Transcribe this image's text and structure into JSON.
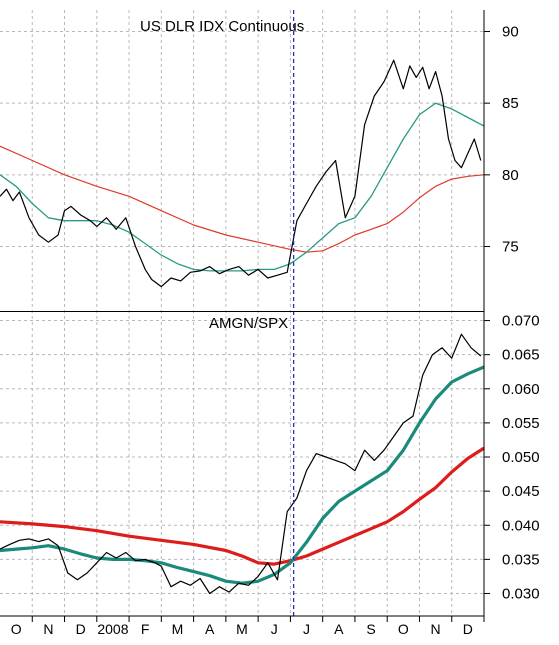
{
  "chart_data": [
    {
      "type": "line",
      "title": "US DLR IDX Continuous",
      "y_ticks": [
        75,
        80,
        85,
        90
      ],
      "ylim": [
        70.5,
        91.5
      ],
      "x_labels": [
        "O",
        "N",
        "D",
        "2008",
        "F",
        "M",
        "A",
        "M",
        "J",
        "J",
        "A",
        "S",
        "O",
        "N",
        "D"
      ],
      "x_domain": [
        0,
        15
      ],
      "grid": true,
      "colors": {
        "price": "#000000",
        "ma_short": "#2a9a86",
        "ma_long": "#e03a2a",
        "cursor": "#2233bb"
      },
      "series": [
        {
          "key": "price",
          "x": [
            0.0,
            0.2,
            0.4,
            0.6,
            0.9,
            1.2,
            1.5,
            1.8,
            2.0,
            2.2,
            2.5,
            2.8,
            3.0,
            3.3,
            3.6,
            3.9,
            4.2,
            4.5,
            4.7,
            5.0,
            5.3,
            5.6,
            5.9,
            6.2,
            6.5,
            6.8,
            7.1,
            7.4,
            7.7,
            8.0,
            8.3,
            8.6,
            8.9,
            9.2,
            9.5,
            9.8,
            10.1,
            10.4,
            10.7,
            11.0,
            11.3,
            11.6,
            11.9,
            12.2,
            12.5,
            12.7,
            12.9,
            13.1,
            13.3,
            13.5,
            13.7,
            13.9,
            14.1,
            14.3,
            14.5,
            14.7,
            14.9
          ],
          "values": [
            78.5,
            79.0,
            78.2,
            78.8,
            77.0,
            75.8,
            75.3,
            75.8,
            77.5,
            77.8,
            77.2,
            76.8,
            76.4,
            77.0,
            76.2,
            77.0,
            75.0,
            73.4,
            72.7,
            72.2,
            72.8,
            72.6,
            73.2,
            73.3,
            73.6,
            73.1,
            73.4,
            73.6,
            73.0,
            73.4,
            72.8,
            73.0,
            73.2,
            76.8,
            78.0,
            79.2,
            80.2,
            81.0,
            77.0,
            78.5,
            83.5,
            85.5,
            86.5,
            88.0,
            86.0,
            87.6,
            86.8,
            87.5,
            86.0,
            87.2,
            85.5,
            82.5,
            81.0,
            80.5,
            81.5,
            82.5,
            81.0
          ]
        },
        {
          "key": "ma_short",
          "x": [
            0,
            0.5,
            1,
            1.5,
            2,
            2.5,
            3,
            3.5,
            4,
            4.5,
            5,
            5.5,
            6,
            6.5,
            7,
            7.5,
            8,
            8.5,
            9,
            9.5,
            10,
            10.5,
            11,
            11.5,
            12,
            12.5,
            13,
            13.5,
            14,
            14.5,
            15
          ],
          "values": [
            80.0,
            79.2,
            78.0,
            77.0,
            76.8,
            76.8,
            76.8,
            76.5,
            76.0,
            75.2,
            74.4,
            73.8,
            73.4,
            73.3,
            73.3,
            73.3,
            73.4,
            73.4,
            73.8,
            74.6,
            75.6,
            76.6,
            77.0,
            78.5,
            80.5,
            82.5,
            84.2,
            85.0,
            84.6,
            84.0,
            83.4
          ]
        },
        {
          "key": "ma_long",
          "x": [
            0,
            1,
            2,
            3,
            4,
            5,
            6,
            7,
            8,
            9,
            9.5,
            10,
            10.5,
            11,
            11.5,
            12,
            12.5,
            13,
            13.5,
            14,
            14.5,
            15
          ],
          "values": [
            82.0,
            81.0,
            80.0,
            79.2,
            78.5,
            77.5,
            76.5,
            75.8,
            75.3,
            74.8,
            74.6,
            74.7,
            75.2,
            75.8,
            76.2,
            76.6,
            77.4,
            78.4,
            79.2,
            79.7,
            79.9,
            80.0
          ]
        }
      ]
    },
    {
      "type": "line",
      "title": "AMGN/SPX",
      "y_ticks": [
        0.03,
        0.035,
        0.04,
        0.045,
        0.05,
        0.055,
        0.06,
        0.065,
        0.07
      ],
      "y_tick_labels": [
        "0.030",
        "0.035",
        "0.040",
        "0.045",
        "0.050",
        "0.055",
        "0.060",
        "0.065",
        "0.070"
      ],
      "ylim": [
        0.0267,
        0.0714
      ],
      "x_domain": [
        0,
        15
      ],
      "grid": true,
      "colors": {
        "price": "#000000",
        "ma_short": "#1a8a7a",
        "ma_long": "#dd1c1c",
        "cursor": "#2233bb"
      },
      "series": [
        {
          "key": "price",
          "x": [
            0.0,
            0.3,
            0.6,
            0.9,
            1.2,
            1.5,
            1.8,
            2.1,
            2.4,
            2.7,
            3.0,
            3.3,
            3.6,
            3.9,
            4.2,
            4.5,
            4.8,
            5.0,
            5.3,
            5.6,
            5.9,
            6.2,
            6.5,
            6.8,
            7.1,
            7.4,
            7.7,
            8.0,
            8.3,
            8.6,
            8.9,
            9.2,
            9.5,
            9.8,
            10.1,
            10.4,
            10.7,
            11.0,
            11.3,
            11.6,
            11.9,
            12.2,
            12.5,
            12.8,
            13.1,
            13.4,
            13.7,
            14.0,
            14.3,
            14.6,
            14.9
          ],
          "values": [
            0.0365,
            0.0372,
            0.0378,
            0.038,
            0.0376,
            0.038,
            0.037,
            0.033,
            0.032,
            0.033,
            0.0345,
            0.036,
            0.0352,
            0.036,
            0.0348,
            0.035,
            0.0345,
            0.034,
            0.031,
            0.0318,
            0.0312,
            0.0322,
            0.03,
            0.031,
            0.0302,
            0.0315,
            0.0312,
            0.0325,
            0.0345,
            0.032,
            0.042,
            0.044,
            0.048,
            0.0505,
            0.05,
            0.0495,
            0.049,
            0.048,
            0.051,
            0.0495,
            0.051,
            0.053,
            0.055,
            0.056,
            0.062,
            0.065,
            0.066,
            0.0645,
            0.068,
            0.066,
            0.0648
          ]
        },
        {
          "key": "ma_short",
          "x": [
            0,
            0.5,
            1,
            1.5,
            2,
            2.5,
            3,
            3.5,
            4,
            4.5,
            5,
            5.5,
            6,
            6.5,
            7,
            7.5,
            8,
            8.5,
            9,
            9.5,
            10,
            10.5,
            11,
            11.5,
            12,
            12.5,
            13,
            13.5,
            14,
            14.5,
            15
          ],
          "values": [
            0.0363,
            0.0365,
            0.0367,
            0.037,
            0.0365,
            0.0358,
            0.0352,
            0.035,
            0.035,
            0.0348,
            0.0345,
            0.0338,
            0.0332,
            0.0326,
            0.0318,
            0.0315,
            0.0318,
            0.0328,
            0.0345,
            0.0375,
            0.041,
            0.0435,
            0.045,
            0.0465,
            0.048,
            0.051,
            0.055,
            0.0585,
            0.061,
            0.0622,
            0.0632
          ]
        },
        {
          "key": "ma_long",
          "x": [
            0,
            1,
            2,
            3,
            4,
            5,
            6,
            7,
            7.5,
            8,
            8.5,
            9,
            9.5,
            10,
            10.5,
            11,
            11.5,
            12,
            12.5,
            13,
            13.5,
            14,
            14.5,
            15
          ],
          "values": [
            0.0405,
            0.0402,
            0.0398,
            0.0392,
            0.0384,
            0.0378,
            0.0372,
            0.0363,
            0.0355,
            0.0345,
            0.0343,
            0.0348,
            0.0355,
            0.0365,
            0.0375,
            0.0385,
            0.0395,
            0.0405,
            0.042,
            0.0438,
            0.0455,
            0.0478,
            0.0498,
            0.0513
          ]
        }
      ]
    }
  ],
  "cursor_x": 9.1
}
